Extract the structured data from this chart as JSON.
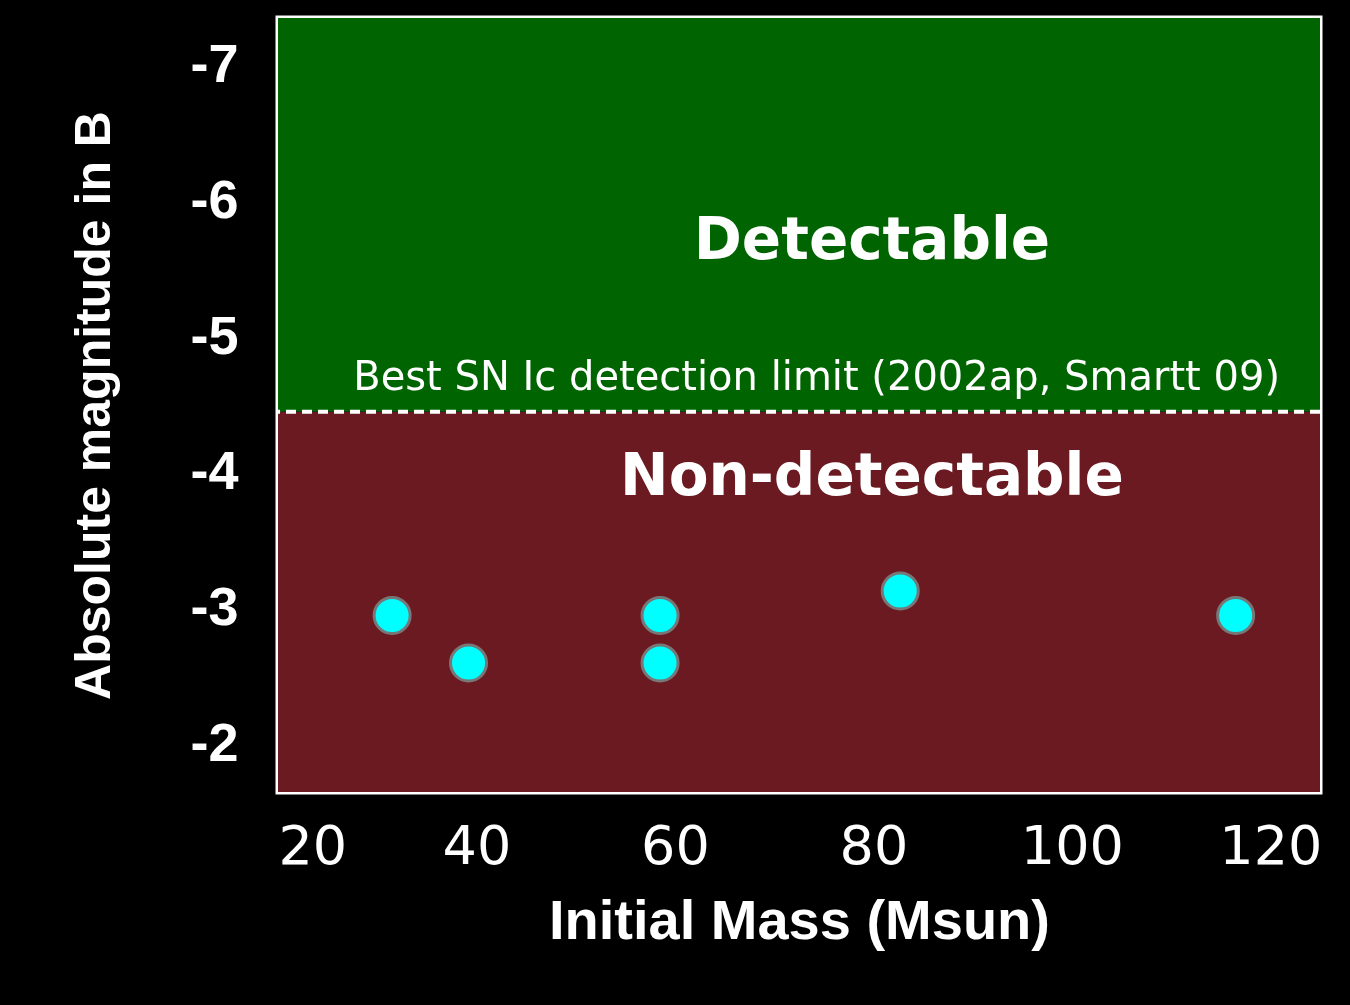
{
  "chart_data": {
    "type": "scatter",
    "xlabel": "Initial Mass (Msun)",
    "ylabel": "Absolute magnitude in B",
    "xlim": [
      20,
      125
    ],
    "xticks": [
      20,
      40,
      60,
      80,
      100,
      120
    ],
    "ylim": [
      -1.65,
      -7.35
    ],
    "yticks": [
      -7,
      -6,
      -5,
      -4,
      -3,
      -2
    ],
    "marker": "circle",
    "grid": false,
    "series": [
      {
        "color": "#00ffff",
        "x": [
          31.5,
          39.2,
          58.5,
          116.5
        ],
        "values": [
          -2.95,
          -2.6,
          -2.95,
          -2.95
        ]
      },
      {
        "color": "#00ffff",
        "x": [
          58.5,
          82.7
        ],
        "values": [
          -2.6,
          -3.13
        ]
      }
    ],
    "bands": [
      {
        "axis": "y",
        "from": -4.45,
        "to": -7.35,
        "label": "Detectable",
        "color": "#006400"
      },
      {
        "axis": "y",
        "from": -4.45,
        "to": -1.65,
        "label": "Non-detectable",
        "color": "#6b1a22"
      }
    ],
    "ref_lines": [
      {
        "axis": "y",
        "value": -4.45,
        "label": "Best SN Ic detection limit (2002ap, Smartt 09)",
        "color": "#ffffff",
        "line_style": "dashed"
      }
    ]
  }
}
